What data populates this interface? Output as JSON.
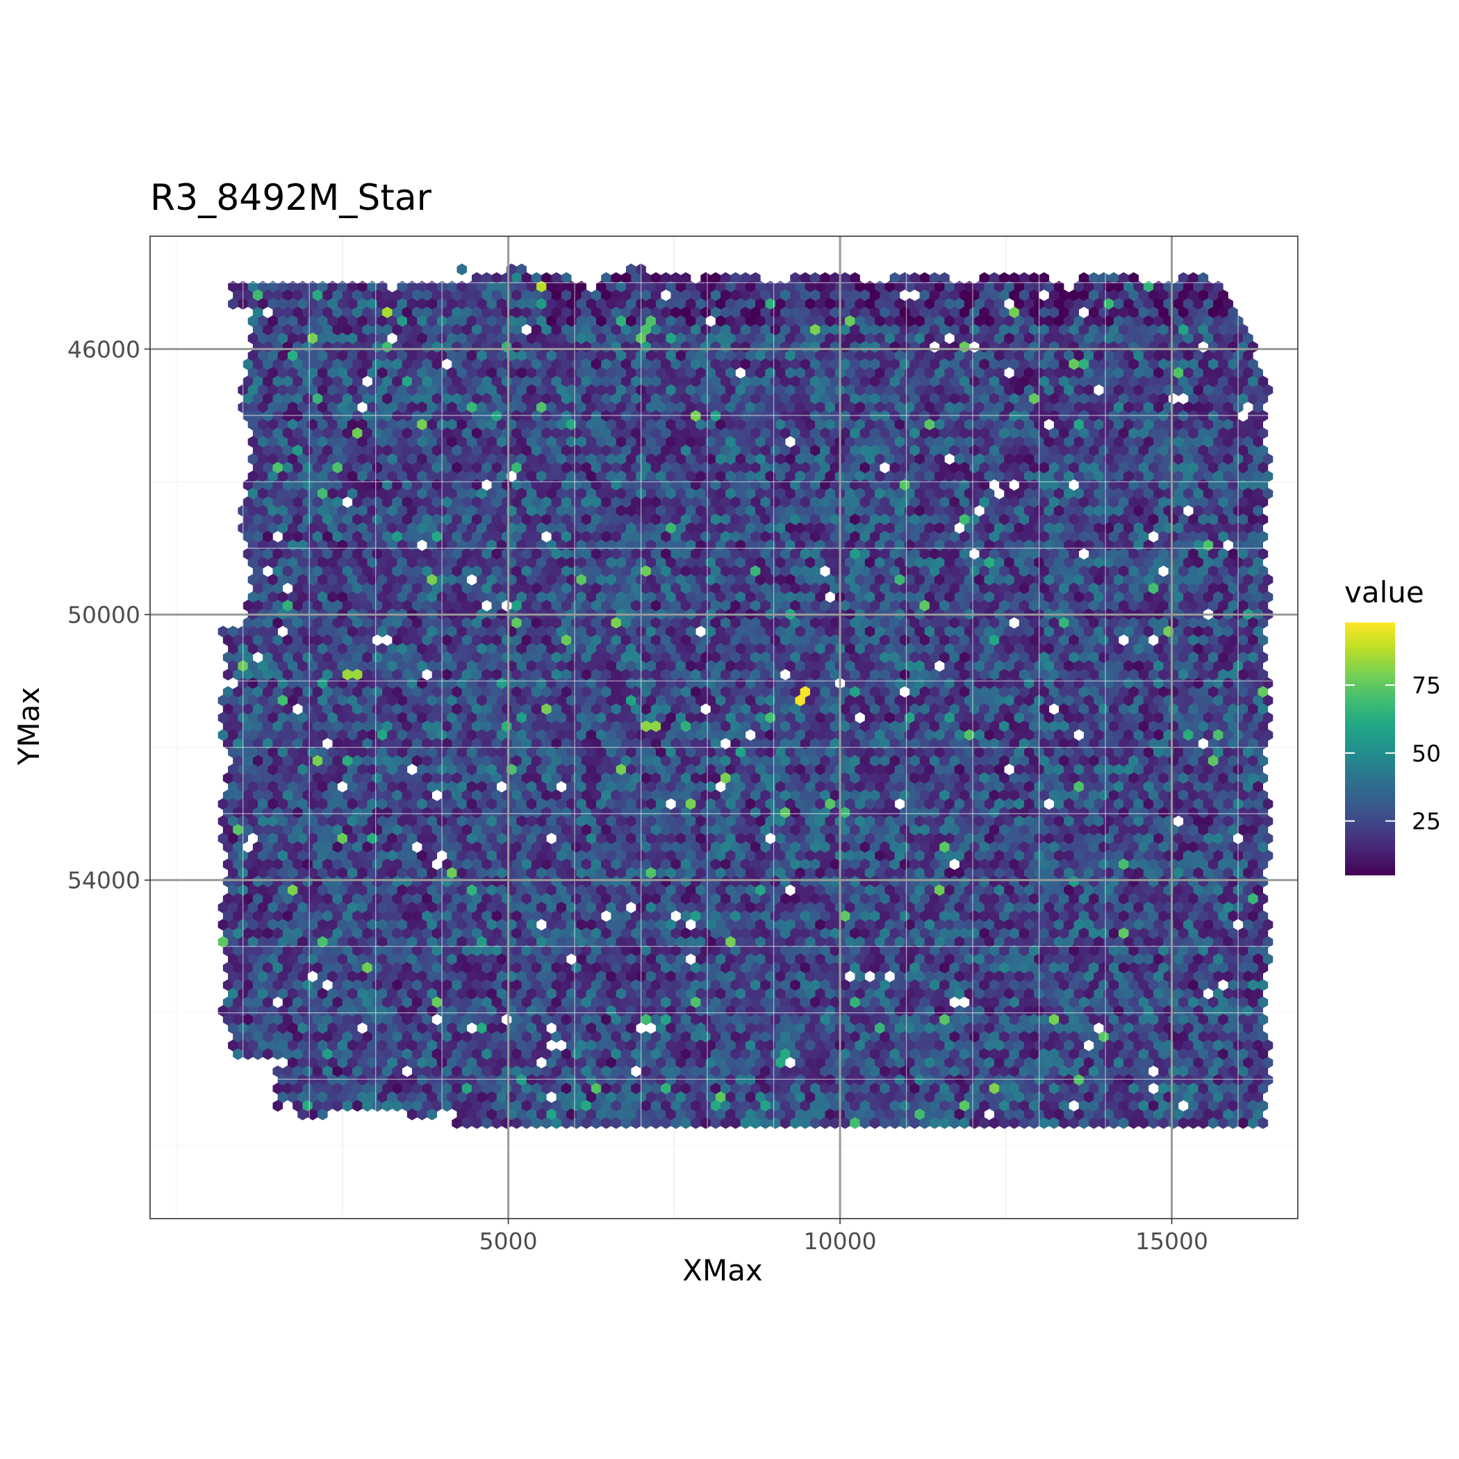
{
  "chart_data": {
    "type": "heatmap",
    "subtype": "hexbin",
    "title": "R3_8492M_Star",
    "xlabel": "XMax",
    "ylabel": "YMax",
    "xlim": [
      -400,
      16900
    ],
    "ylim": [
      44300,
      59100
    ],
    "y_reversed": true,
    "x_ticks": [
      5000,
      10000,
      15000
    ],
    "y_ticks": [
      46000,
      50000,
      54000
    ],
    "x_tick_labels": [
      "5000",
      "10000",
      "15000"
    ],
    "y_tick_labels": [
      "46000",
      "50000",
      "54000"
    ],
    "grid": true,
    "theme": "bw",
    "fill_scale": "viridis",
    "value_range": [
      5,
      98
    ],
    "legend": {
      "title": "value",
      "position": "right",
      "breaks": [
        25,
        50,
        75
      ],
      "labels": [
        "25",
        "50",
        "75"
      ]
    },
    "tissue_extent": {
      "x": [
        700,
        16700
      ],
      "y": [
        44800,
        57700
      ]
    },
    "hex_spacing": 150,
    "value_distribution": {
      "typical_range": [
        10,
        45
      ],
      "mean": 26,
      "sparse_high_max": 98
    },
    "notable_points": [
      {
        "x": 9450,
        "y": 51220,
        "value": 97
      },
      {
        "x": 5480,
        "y": 45100,
        "value": 88
      },
      {
        "x": 3150,
        "y": 45400,
        "value": 86
      },
      {
        "x": 2650,
        "y": 50900,
        "value": 84
      },
      {
        "x": 1700,
        "y": 54150,
        "value": 80
      },
      {
        "x": 7150,
        "y": 51650,
        "value": 82
      }
    ],
    "empty_points": [
      {
        "x": 1800,
        "y": 51450
      },
      {
        "x": 4500,
        "y": 56200
      },
      {
        "x": 8700,
        "y": 51800
      },
      {
        "x": 12350,
        "y": 48100
      },
      {
        "x": 15100,
        "y": 46800
      },
      {
        "x": 11050,
        "y": 45200
      },
      {
        "x": 6950,
        "y": 56850
      },
      {
        "x": 13100,
        "y": 52900
      },
      {
        "x": 9300,
        "y": 54200
      },
      {
        "x": 15500,
        "y": 55700
      },
      {
        "x": 3100,
        "y": 50400
      },
      {
        "x": 10700,
        "y": 47800
      }
    ]
  }
}
